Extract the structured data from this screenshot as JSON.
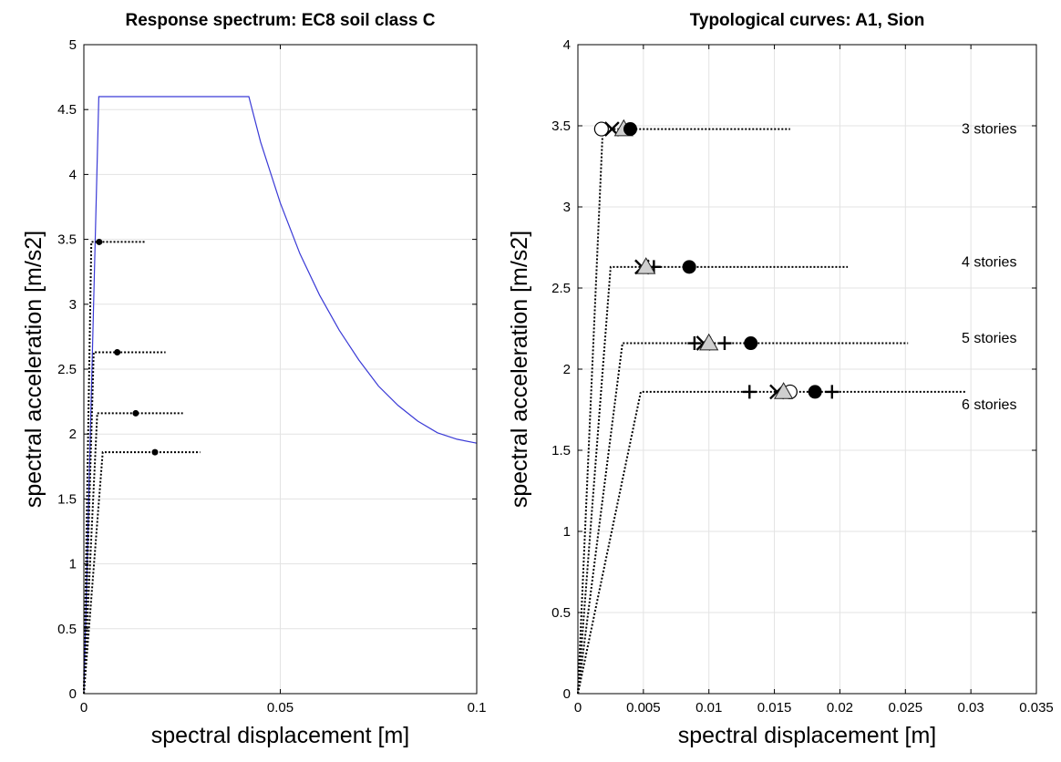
{
  "chart_data": [
    {
      "type": "line",
      "title": "Response spectrum: EC8 soil class C",
      "xlabel": "spectral displacement [m]",
      "ylabel": "spectral acceleration [m/s2]",
      "xlim": [
        0,
        0.1
      ],
      "ylim": [
        0,
        5
      ],
      "xticks": [
        0,
        0.05,
        0.1
      ],
      "xtick_labels": [
        "0",
        "0.05",
        "0.1"
      ],
      "yticks": [
        0,
        0.5,
        1,
        1.5,
        2,
        2.5,
        3,
        3.5,
        4,
        4.5,
        5
      ],
      "ytick_labels": [
        "0",
        "0.5",
        "1",
        "1.5",
        "2",
        "2.5",
        "3",
        "3.5",
        "4",
        "4.5",
        "5"
      ],
      "grid": true,
      "spectrum": {
        "color": "#3a3ad6",
        "points": [
          [
            0,
            0
          ],
          [
            0.0038,
            4.6
          ],
          [
            0.042,
            4.6
          ],
          [
            0.045,
            4.25
          ],
          [
            0.05,
            3.78
          ],
          [
            0.055,
            3.39
          ],
          [
            0.06,
            3.07
          ],
          [
            0.065,
            2.8
          ],
          [
            0.07,
            2.57
          ],
          [
            0.075,
            2.37
          ],
          [
            0.08,
            2.22
          ],
          [
            0.085,
            2.1
          ],
          [
            0.09,
            2.01
          ],
          [
            0.095,
            1.96
          ],
          [
            0.1,
            1.93
          ]
        ]
      },
      "capacity_curves": [
        {
          "yield_dy": 0.0019,
          "ay": 3.48,
          "du": 0.0158,
          "marker_dy": 0.0039
        },
        {
          "yield_dy": 0.0025,
          "ay": 2.63,
          "du": 0.0208,
          "marker_dy": 0.0085
        },
        {
          "yield_dy": 0.0034,
          "ay": 2.16,
          "du": 0.0252,
          "marker_dy": 0.0132
        },
        {
          "yield_dy": 0.0048,
          "ay": 1.86,
          "du": 0.0296,
          "marker_dy": 0.0181
        }
      ]
    },
    {
      "type": "line",
      "title": "Typological curves: A1, Sion",
      "xlabel": "spectral displacement [m]",
      "ylabel": "spectral acceleration [m/s2]",
      "xlim": [
        0,
        0.035
      ],
      "ylim": [
        0,
        4
      ],
      "xticks": [
        0,
        0.005,
        0.01,
        0.015,
        0.02,
        0.025,
        0.03,
        0.035
      ],
      "xtick_labels": [
        "0",
        "0.005",
        "0.01",
        "0.015",
        "0.02",
        "0.025",
        "0.03",
        "0.035"
      ],
      "yticks": [
        0,
        0.5,
        1,
        1.5,
        2,
        2.5,
        3,
        3.5,
        4
      ],
      "ytick_labels": [
        "0",
        "0.5",
        "1",
        "1.5",
        "2",
        "2.5",
        "3",
        "3.5",
        "4"
      ],
      "grid": true,
      "curves": [
        {
          "label": "3 stories",
          "label_x": 0.0335,
          "label_y": 3.48,
          "yield_dy": 0.0019,
          "ay": 3.48,
          "du": 0.0162,
          "markers": [
            {
              "shape": "circle-open",
              "dy": 0.0018
            },
            {
              "shape": "x",
              "dy": 0.0026
            },
            {
              "shape": "triangle",
              "dy": 0.0035
            },
            {
              "shape": "dot",
              "dy": 0.004
            }
          ]
        },
        {
          "label": "4 stories",
          "label_x": 0.0335,
          "label_y": 2.66,
          "yield_dy": 0.0025,
          "ay": 2.63,
          "du": 0.0206,
          "markers": [
            {
              "shape": "x",
              "dy": 0.0049
            },
            {
              "shape": "plus",
              "dy": 0.0058
            },
            {
              "shape": "triangle",
              "dy": 0.0052
            },
            {
              "shape": "dot",
              "dy": 0.0085
            }
          ]
        },
        {
          "label": "5 stories",
          "label_x": 0.0335,
          "label_y": 2.19,
          "yield_dy": 0.0034,
          "ay": 2.16,
          "du": 0.0252,
          "markers": [
            {
              "shape": "plus",
              "dy": 0.0089
            },
            {
              "shape": "x",
              "dy": 0.0096
            },
            {
              "shape": "triangle",
              "dy": 0.01
            },
            {
              "shape": "plus",
              "dy": 0.0112
            },
            {
              "shape": "dot",
              "dy": 0.0132
            }
          ]
        },
        {
          "label": "6 stories",
          "label_x": 0.0335,
          "label_y": 1.78,
          "yield_dy": 0.0048,
          "ay": 1.86,
          "du": 0.0296,
          "markers": [
            {
              "shape": "plus",
              "dy": 0.0131
            },
            {
              "shape": "x",
              "dy": 0.0152
            },
            {
              "shape": "circle-open",
              "dy": 0.0162
            },
            {
              "shape": "triangle",
              "dy": 0.0157
            },
            {
              "shape": "dot",
              "dy": 0.0181
            },
            {
              "shape": "plus",
              "dy": 0.0194
            }
          ]
        }
      ]
    }
  ]
}
